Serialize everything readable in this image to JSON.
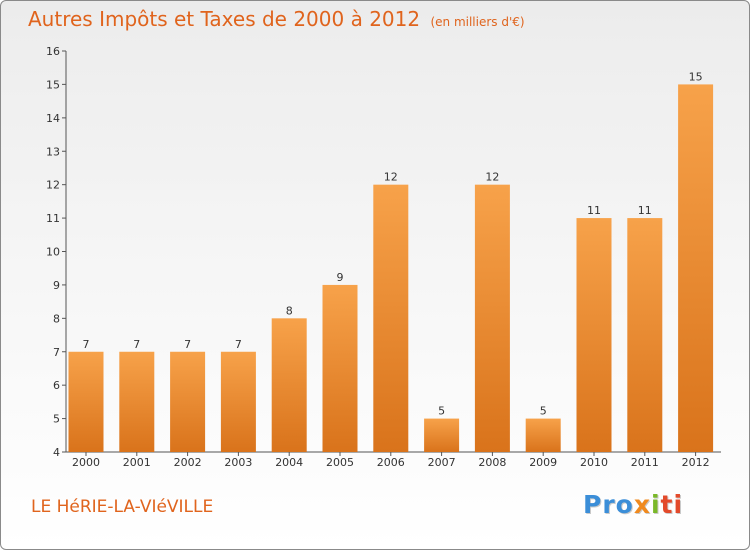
{
  "header": {
    "title": "Autres Impôts et Taxes de 2000 à 2012",
    "unit": "(en milliers d'€)"
  },
  "footer": {
    "place": "LE HéRIE-LA-VIéVILLE",
    "logo": [
      "Pro",
      "x",
      "i",
      "ti"
    ]
  },
  "colors": {
    "bar_light": "#f7a24a",
    "bar_dark": "#d9731b",
    "title": "#e0641d",
    "axis": "#555555"
  },
  "chart_data": {
    "type": "bar",
    "title": "Autres Impôts et Taxes de 2000 à 2012",
    "subtitle": "(en milliers d'€)",
    "categories": [
      "2000",
      "2001",
      "2002",
      "2003",
      "2004",
      "2005",
      "2006",
      "2007",
      "2008",
      "2009",
      "2010",
      "2011",
      "2012"
    ],
    "values": [
      7,
      7,
      7,
      7,
      8,
      9,
      12,
      5,
      12,
      5,
      11,
      11,
      15
    ],
    "ylim": [
      4,
      16
    ],
    "yticks": [
      4,
      5,
      6,
      7,
      8,
      9,
      10,
      11,
      12,
      13,
      14,
      15,
      16
    ],
    "grid": false,
    "legend": "none"
  }
}
